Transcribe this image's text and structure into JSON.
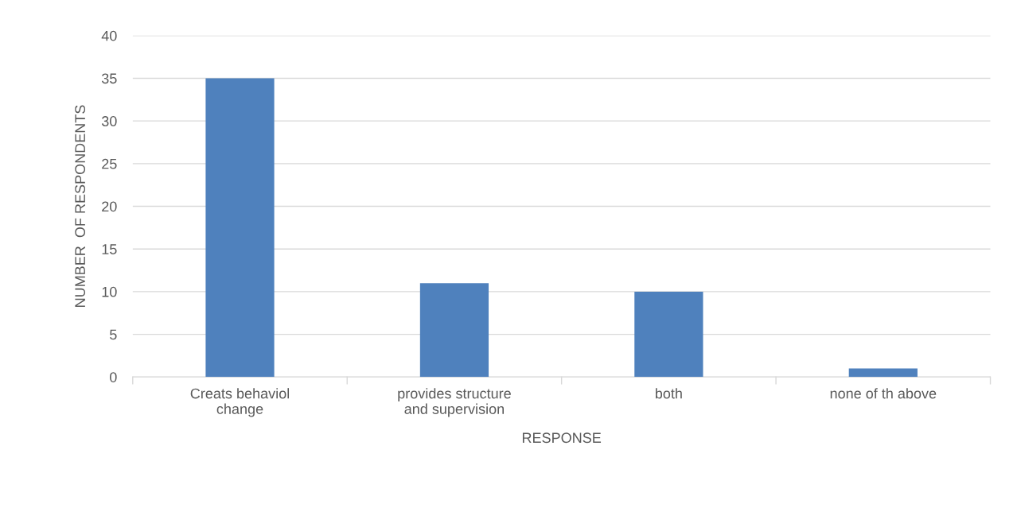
{
  "chart_data": {
    "type": "bar",
    "categories": [
      "Creats behaviol\nchange",
      "provides structure\nand supervision",
      "both",
      "none of th above"
    ],
    "values": [
      35,
      11,
      10,
      1
    ],
    "color": "#4f81bd",
    "xlabel": "RESPONSE",
    "ylabel": "NUMBER  OF RESPONDENTS",
    "ylim": [
      0,
      40
    ],
    "yticks": [
      0,
      5,
      10,
      15,
      20,
      25,
      30,
      35,
      40
    ],
    "grid": "y",
    "legend": false
  }
}
